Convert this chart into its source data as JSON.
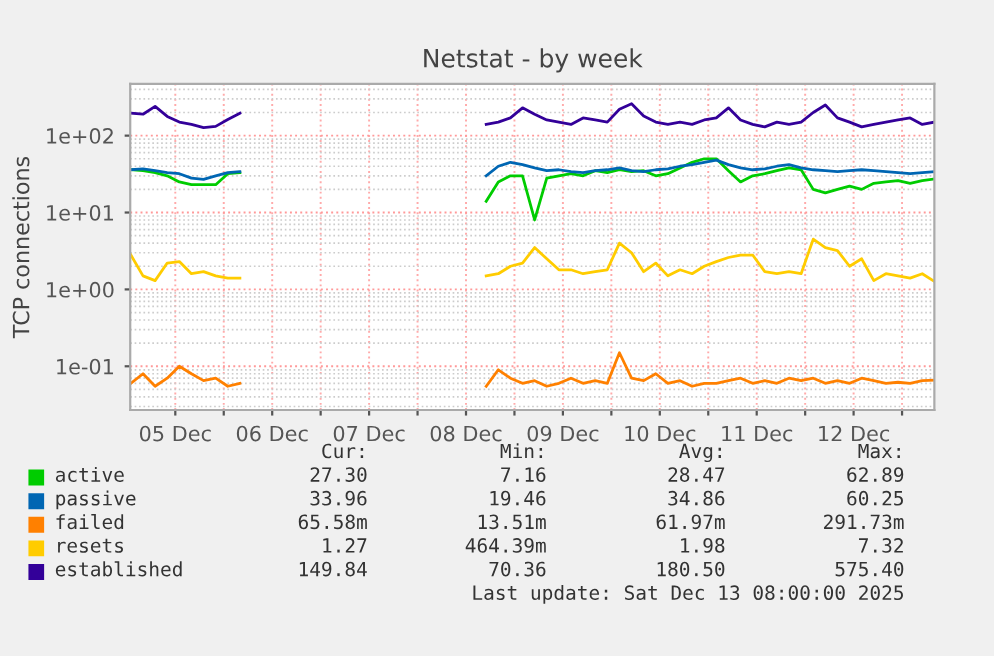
{
  "chart_data": {
    "type": "line",
    "title": "Netstat - by week",
    "ylabel": "TCP connections",
    "log": "y",
    "grid": true,
    "legend": "bottom",
    "line_style": "solid",
    "marker": "none",
    "xlim": [
      "2025-12-05T00:50",
      "2025-12-13T08:00"
    ],
    "xticks": [
      {
        "value": "2025-12-05T12:00",
        "label": "05 Dec"
      },
      {
        "value": "2025-12-06T00:00",
        "label": null
      },
      {
        "value": "2025-12-06T12:00",
        "label": "06 Dec"
      },
      {
        "value": "2025-12-07T00:00",
        "label": null
      },
      {
        "value": "2025-12-07T12:00",
        "label": "07 Dec"
      },
      {
        "value": "2025-12-08T00:00",
        "label": null
      },
      {
        "value": "2025-12-08T12:00",
        "label": "08 Dec"
      },
      {
        "value": "2025-12-09T00:00",
        "label": null
      },
      {
        "value": "2025-12-09T12:00",
        "label": "09 Dec"
      },
      {
        "value": "2025-12-10T00:00",
        "label": null
      },
      {
        "value": "2025-12-10T12:00",
        "label": "10 Dec"
      },
      {
        "value": "2025-12-11T00:00",
        "label": null
      },
      {
        "value": "2025-12-11T12:00",
        "label": "11 Dec"
      },
      {
        "value": "2025-12-12T00:00",
        "label": null
      },
      {
        "value": "2025-12-12T12:00",
        "label": "12 Dec"
      },
      {
        "value": "2025-12-13T00:00",
        "label": null
      }
    ],
    "ylim": [
      0.027,
      470
    ],
    "yticks": [
      {
        "value": 0.1,
        "label": "1e-01"
      },
      {
        "value": 1,
        "label": "1e+00"
      },
      {
        "value": 10,
        "label": "1e+01"
      },
      {
        "value": 100,
        "label": "1e+02"
      }
    ],
    "x": [
      "2025-12-05T01:00",
      "2025-12-05T04:00",
      "2025-12-05T07:00",
      "2025-12-05T10:00",
      "2025-12-05T13:00",
      "2025-12-05T16:00",
      "2025-12-05T19:00",
      "2025-12-05T22:00",
      "2025-12-06T01:00",
      "2025-12-06T04:00",
      "2025-12-07T00:00",
      "2025-12-08T17:00",
      "2025-12-08T20:00",
      "2025-12-08T23:00",
      "2025-12-09T02:00",
      "2025-12-09T05:00",
      "2025-12-09T08:00",
      "2025-12-09T11:00",
      "2025-12-09T14:00",
      "2025-12-09T17:00",
      "2025-12-09T20:00",
      "2025-12-09T23:00",
      "2025-12-10T02:00",
      "2025-12-10T05:00",
      "2025-12-10T08:00",
      "2025-12-10T11:00",
      "2025-12-10T14:00",
      "2025-12-10T17:00",
      "2025-12-10T20:00",
      "2025-12-10T23:00",
      "2025-12-11T02:00",
      "2025-12-11T05:00",
      "2025-12-11T08:00",
      "2025-12-11T11:00",
      "2025-12-11T14:00",
      "2025-12-11T17:00",
      "2025-12-11T20:00",
      "2025-12-11T23:00",
      "2025-12-12T02:00",
      "2025-12-12T05:00",
      "2025-12-12T08:00",
      "2025-12-12T11:00",
      "2025-12-12T14:00",
      "2025-12-12T17:00",
      "2025-12-12T20:00",
      "2025-12-12T23:00",
      "2025-12-13T02:00",
      "2025-12-13T05:00",
      "2025-12-13T08:00"
    ],
    "series": [
      {
        "name": "active",
        "color": "#00cc00",
        "values": [
          36,
          35,
          33,
          30,
          25,
          23,
          23,
          23,
          32,
          33,
          null,
          14,
          25,
          30,
          30,
          8,
          28,
          30,
          32,
          30,
          35,
          33,
          36,
          34,
          35,
          30,
          32,
          38,
          45,
          50,
          50,
          35,
          25,
          30,
          32,
          35,
          38,
          36,
          20,
          18,
          20,
          22,
          20,
          24,
          25,
          26,
          24,
          26,
          27.3
        ]
      },
      {
        "name": "passive",
        "color": "#0066b3",
        "values": [
          36,
          37,
          35,
          33,
          32,
          28,
          27,
          30,
          33,
          34,
          null,
          30,
          40,
          45,
          42,
          38,
          35,
          36,
          34,
          33,
          35,
          36,
          38,
          35,
          34,
          36,
          37,
          40,
          42,
          45,
          48,
          42,
          38,
          36,
          37,
          40,
          42,
          38,
          36,
          35,
          34,
          35,
          36,
          35,
          34,
          33,
          32,
          33,
          34
        ]
      },
      {
        "name": "failed",
        "color": "#ff8000",
        "values": [
          0.06,
          0.08,
          0.055,
          0.07,
          0.1,
          0.08,
          0.065,
          0.07,
          0.055,
          0.06,
          null,
          0.055,
          0.09,
          0.07,
          0.06,
          0.065,
          0.055,
          0.06,
          0.07,
          0.06,
          0.065,
          0.06,
          0.15,
          0.07,
          0.065,
          0.08,
          0.06,
          0.065,
          0.055,
          0.06,
          0.06,
          0.065,
          0.07,
          0.06,
          0.065,
          0.06,
          0.07,
          0.065,
          0.07,
          0.06,
          0.065,
          0.06,
          0.07,
          0.065,
          0.06,
          0.062,
          0.06,
          0.065,
          0.066
        ]
      },
      {
        "name": "resets",
        "color": "#ffcc00",
        "values": [
          2.8,
          1.5,
          1.3,
          2.2,
          2.3,
          1.6,
          1.7,
          1.5,
          1.4,
          1.4,
          null,
          1.5,
          1.6,
          2.0,
          2.2,
          3.5,
          2.5,
          1.8,
          1.8,
          1.6,
          1.7,
          1.8,
          4.0,
          3.0,
          1.7,
          2.2,
          1.5,
          1.8,
          1.6,
          2.0,
          2.3,
          2.6,
          2.8,
          2.8,
          1.7,
          1.6,
          1.7,
          1.6,
          4.5,
          3.5,
          3.2,
          2.0,
          2.5,
          1.3,
          1.6,
          1.5,
          1.4,
          1.6,
          1.27
        ]
      },
      {
        "name": "established",
        "color": "#330099",
        "values": [
          196,
          190,
          240,
          178,
          150,
          140,
          127,
          132,
          162,
          196,
          null,
          140,
          150,
          170,
          230,
          190,
          160,
          150,
          140,
          170,
          160,
          150,
          220,
          260,
          180,
          150,
          140,
          150,
          140,
          160,
          170,
          230,
          160,
          140,
          130,
          150,
          140,
          150,
          200,
          250,
          170,
          150,
          130,
          140,
          150,
          160,
          170,
          140,
          150
        ]
      }
    ],
    "annotations": [
      "Cur:",
      "Min:",
      "Avg:",
      "Max:",
      "27.30",
      "7.16",
      "28.47",
      "62.89",
      "33.96",
      "19.46",
      "34.86",
      "60.25",
      "65.58m",
      "13.51m",
      "61.97m",
      "291.73m",
      "1.27",
      "464.39m",
      "1.98",
      "7.32",
      "149.84",
      "70.36",
      "180.50",
      "575.40",
      "Last update: Sat Dec 13 08:00:00 2025"
    ]
  }
}
